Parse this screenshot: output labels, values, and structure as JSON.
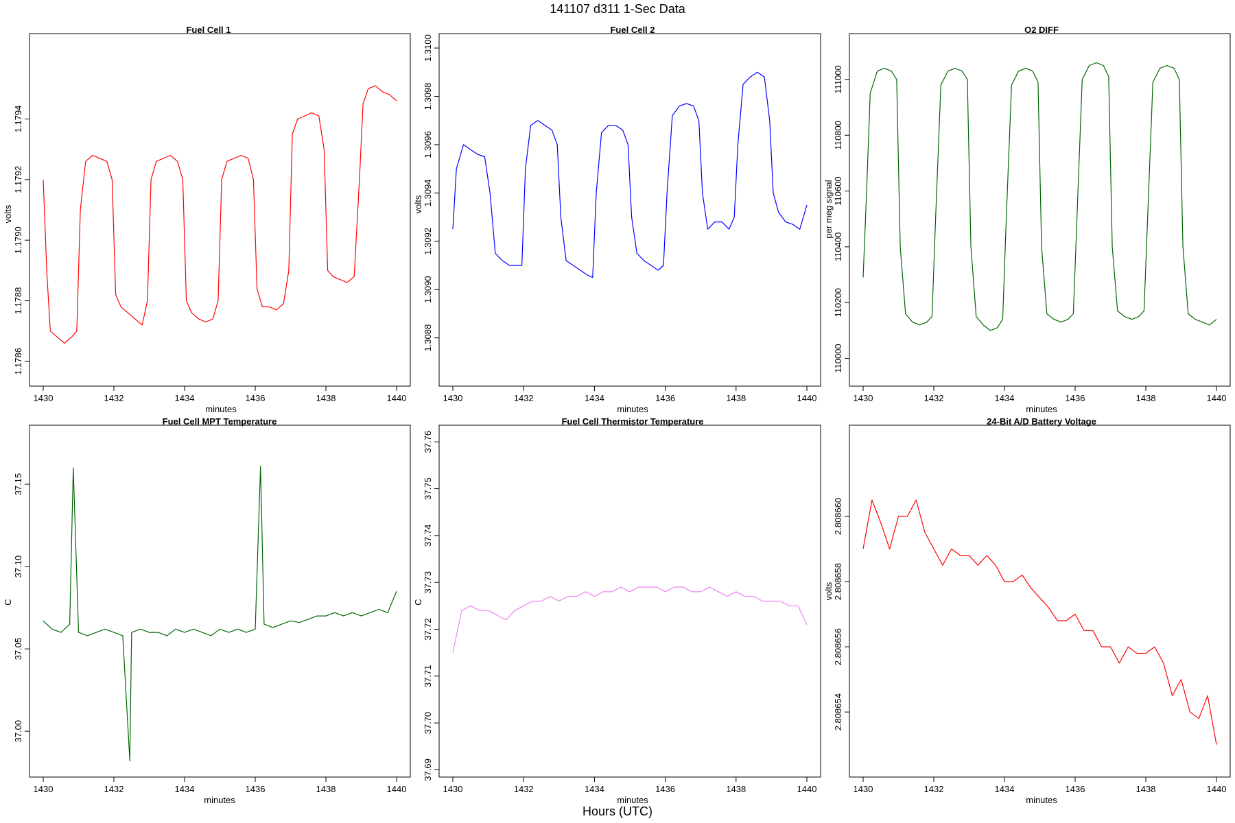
{
  "figure": {
    "title": "141107   d311   1-Sec Data",
    "xaxis_title": "Hours (UTC)"
  },
  "chart_data": [
    {
      "type": "line",
      "title": "Fuel Cell 1",
      "xlabel": "minutes",
      "ylabel": "volts",
      "color": "#ff0000",
      "xlim": [
        1430,
        1440
      ],
      "ylim": [
        1.17855,
        1.17965
      ],
      "xticks": [
        1430,
        1432,
        1434,
        1436,
        1438,
        1440
      ],
      "yticks": [
        1.1786,
        1.1788,
        1.179,
        1.1792,
        1.1794
      ],
      "ytick_labels": [
        "1.1786",
        "1.1788",
        "1.1790",
        "1.1792",
        "1.1794"
      ],
      "series": [
        {
          "x": [
            1430.0,
            1430.1,
            1430.2,
            1430.4,
            1430.6,
            1430.8,
            1430.95,
            1431.05,
            1431.2,
            1431.4,
            1431.6,
            1431.8,
            1431.95,
            1432.05,
            1432.2,
            1432.4,
            1432.6,
            1432.8,
            1432.95,
            1433.05,
            1433.2,
            1433.4,
            1433.6,
            1433.8,
            1433.95,
            1434.05,
            1434.2,
            1434.4,
            1434.6,
            1434.8,
            1434.95,
            1435.05,
            1435.2,
            1435.4,
            1435.6,
            1435.8,
            1435.95,
            1436.05,
            1436.2,
            1436.4,
            1436.6,
            1436.8,
            1436.95,
            1437.05,
            1437.2,
            1437.4,
            1437.6,
            1437.8,
            1437.95,
            1438.05,
            1438.2,
            1438.4,
            1438.6,
            1438.8,
            1438.95,
            1439.05,
            1439.2,
            1439.4,
            1439.6,
            1439.8,
            1440.0
          ],
          "y": [
            1.1792,
            1.1789,
            1.1787,
            1.17868,
            1.17866,
            1.17868,
            1.1787,
            1.1791,
            1.17926,
            1.17928,
            1.17927,
            1.17926,
            1.1792,
            1.17882,
            1.17878,
            1.17876,
            1.17874,
            1.17872,
            1.1788,
            1.1792,
            1.17926,
            1.17927,
            1.17928,
            1.17926,
            1.1792,
            1.1788,
            1.17876,
            1.17874,
            1.17873,
            1.17874,
            1.1788,
            1.1792,
            1.17926,
            1.17927,
            1.17928,
            1.17927,
            1.1792,
            1.17884,
            1.17878,
            1.17878,
            1.17877,
            1.17879,
            1.1789,
            1.17935,
            1.1794,
            1.17941,
            1.17942,
            1.17941,
            1.1793,
            1.1789,
            1.17888,
            1.17887,
            1.17886,
            1.17888,
            1.1792,
            1.17945,
            1.1795,
            1.17951,
            1.17949,
            1.17948,
            1.17946
          ]
        }
      ]
    },
    {
      "type": "line",
      "title": "Fuel Cell 2",
      "xlabel": "minutes",
      "ylabel": "volts",
      "color": "#0000ff",
      "xlim": [
        1430,
        1440
      ],
      "ylim": [
        1.30864,
        1.31002
      ],
      "xticks": [
        1430,
        1432,
        1434,
        1436,
        1438,
        1440
      ],
      "yticks": [
        1.3088,
        1.309,
        1.3092,
        1.3094,
        1.3096,
        1.3098,
        1.31
      ],
      "ytick_labels": [
        "1.3088",
        "1.3090",
        "1.3092",
        "1.3094",
        "1.3096",
        "1.3098",
        "1.3100"
      ],
      "series": [
        {
          "x": [
            1430.0,
            1430.1,
            1430.3,
            1430.5,
            1430.7,
            1430.9,
            1431.05,
            1431.2,
            1431.4,
            1431.6,
            1431.8,
            1431.95,
            1432.05,
            1432.2,
            1432.4,
            1432.6,
            1432.8,
            1432.95,
            1433.05,
            1433.2,
            1433.4,
            1433.6,
            1433.8,
            1433.95,
            1434.05,
            1434.2,
            1434.4,
            1434.6,
            1434.8,
            1434.95,
            1435.05,
            1435.2,
            1435.4,
            1435.6,
            1435.8,
            1435.95,
            1436.05,
            1436.2,
            1436.4,
            1436.6,
            1436.8,
            1436.95,
            1437.05,
            1437.2,
            1437.4,
            1437.6,
            1437.8,
            1437.95,
            1438.05,
            1438.2,
            1438.4,
            1438.6,
            1438.8,
            1438.95,
            1439.05,
            1439.2,
            1439.4,
            1439.6,
            1439.8,
            1440.0
          ],
          "y": [
            1.30925,
            1.3095,
            1.3096,
            1.30958,
            1.30956,
            1.30955,
            1.3094,
            1.30915,
            1.30912,
            1.3091,
            1.3091,
            1.3091,
            1.3095,
            1.30968,
            1.3097,
            1.30968,
            1.30966,
            1.3096,
            1.3093,
            1.30912,
            1.3091,
            1.30908,
            1.30906,
            1.30905,
            1.3094,
            1.30965,
            1.30968,
            1.30968,
            1.30966,
            1.3096,
            1.3093,
            1.30915,
            1.30912,
            1.3091,
            1.30908,
            1.3091,
            1.3094,
            1.30972,
            1.30976,
            1.30977,
            1.30976,
            1.3097,
            1.3094,
            1.30925,
            1.30928,
            1.30928,
            1.30925,
            1.3093,
            1.3096,
            1.30985,
            1.30988,
            1.3099,
            1.30988,
            1.3097,
            1.3094,
            1.30932,
            1.30928,
            1.30927,
            1.30925,
            1.30935
          ]
        }
      ]
    },
    {
      "type": "line",
      "title": "O2 DIFF",
      "xlabel": "minutes",
      "ylabel": "per meg signal",
      "color": "#006400",
      "xlim": [
        1430,
        1440
      ],
      "ylim": [
        109935,
        111130
      ],
      "xticks": [
        1430,
        1432,
        1434,
        1436,
        1438,
        1440
      ],
      "yticks": [
        110000,
        110200,
        110400,
        110600,
        110800,
        111000
      ],
      "ytick_labels": [
        "110000",
        "110200",
        "110400",
        "110600",
        "110800",
        "111000"
      ],
      "series": [
        {
          "x": [
            1430.0,
            1430.1,
            1430.2,
            1430.4,
            1430.6,
            1430.8,
            1430.95,
            1431.05,
            1431.2,
            1431.4,
            1431.6,
            1431.8,
            1431.95,
            1432.05,
            1432.2,
            1432.4,
            1432.6,
            1432.8,
            1432.95,
            1433.05,
            1433.2,
            1433.4,
            1433.6,
            1433.8,
            1433.95,
            1434.05,
            1434.2,
            1434.4,
            1434.6,
            1434.8,
            1434.95,
            1435.05,
            1435.2,
            1435.4,
            1435.6,
            1435.8,
            1435.95,
            1436.05,
            1436.2,
            1436.4,
            1436.6,
            1436.8,
            1436.95,
            1437.05,
            1437.2,
            1437.4,
            1437.6,
            1437.8,
            1437.95,
            1438.05,
            1438.2,
            1438.4,
            1438.6,
            1438.8,
            1438.95,
            1439.05,
            1439.2,
            1439.4,
            1439.6,
            1439.8,
            1440.0
          ],
          "y": [
            110290,
            110600,
            110950,
            111030,
            111040,
            111030,
            111000,
            110400,
            110160,
            110130,
            110120,
            110130,
            110150,
            110500,
            110980,
            111030,
            111040,
            111030,
            111000,
            110400,
            110150,
            110120,
            110100,
            110110,
            110140,
            110500,
            110980,
            111030,
            111040,
            111030,
            110990,
            110400,
            110160,
            110140,
            110130,
            110140,
            110160,
            110500,
            111000,
            111050,
            111060,
            111050,
            111010,
            110400,
            110170,
            110150,
            110140,
            110150,
            110170,
            110500,
            110990,
            111040,
            111050,
            111040,
            111000,
            110400,
            110160,
            110140,
            110130,
            110120,
            110140
          ]
        }
      ]
    },
    {
      "type": "line",
      "title": "Fuel Cell MPT Temperature",
      "xlabel": "minutes",
      "ylabel": "C",
      "color": "#006400",
      "xlim": [
        1430,
        1440
      ],
      "ylim": [
        36.978,
        37.18
      ],
      "xticks": [
        1430,
        1432,
        1434,
        1436,
        1438,
        1440
      ],
      "yticks": [
        37.0,
        37.05,
        37.1,
        37.15
      ],
      "ytick_labels": [
        "37.00",
        "37.05",
        "37.10",
        "37.15"
      ],
      "series": [
        {
          "x": [
            1430.0,
            1430.25,
            1430.5,
            1430.75,
            1430.85,
            1431.0,
            1431.25,
            1431.5,
            1431.75,
            1432.0,
            1432.25,
            1432.45,
            1432.5,
            1432.75,
            1433.0,
            1433.25,
            1433.5,
            1433.75,
            1434.0,
            1434.25,
            1434.5,
            1434.75,
            1435.0,
            1435.25,
            1435.5,
            1435.75,
            1436.0,
            1436.15,
            1436.25,
            1436.5,
            1436.75,
            1437.0,
            1437.25,
            1437.5,
            1437.75,
            1438.0,
            1438.25,
            1438.5,
            1438.75,
            1439.0,
            1439.25,
            1439.5,
            1439.75,
            1440.0
          ],
          "y": [
            37.067,
            37.062,
            37.06,
            37.065,
            37.16,
            37.06,
            37.058,
            37.06,
            37.062,
            37.06,
            37.058,
            36.982,
            37.06,
            37.062,
            37.06,
            37.06,
            37.058,
            37.062,
            37.06,
            37.062,
            37.06,
            37.058,
            37.062,
            37.06,
            37.062,
            37.06,
            37.062,
            37.161,
            37.065,
            37.063,
            37.065,
            37.067,
            37.066,
            37.068,
            37.07,
            37.07,
            37.072,
            37.07,
            37.072,
            37.07,
            37.072,
            37.074,
            37.072,
            37.085
          ]
        }
      ]
    },
    {
      "type": "line",
      "title": "Fuel Cell Thermistor Temperature",
      "xlabel": "minutes",
      "ylabel": "C",
      "color": "#ee82ee",
      "xlim": [
        1430,
        1440
      ],
      "ylim": [
        37.6905,
        37.7615
      ],
      "xticks": [
        1430,
        1432,
        1434,
        1436,
        1438,
        1440
      ],
      "yticks": [
        37.69,
        37.7,
        37.71,
        37.72,
        37.73,
        37.74,
        37.75,
        37.76
      ],
      "ytick_labels": [
        "37.69",
        "37.70",
        "37.71",
        "37.72",
        "37.73",
        "37.74",
        "37.75",
        "37.76"
      ],
      "series": [
        {
          "x": [
            1430.0,
            1430.25,
            1430.5,
            1430.75,
            1431.0,
            1431.25,
            1431.5,
            1431.75,
            1432.0,
            1432.25,
            1432.5,
            1432.75,
            1433.0,
            1433.25,
            1433.5,
            1433.75,
            1434.0,
            1434.25,
            1434.5,
            1434.75,
            1435.0,
            1435.25,
            1435.5,
            1435.75,
            1436.0,
            1436.25,
            1436.5,
            1436.75,
            1437.0,
            1437.25,
            1437.5,
            1437.75,
            1438.0,
            1438.25,
            1438.5,
            1438.75,
            1439.0,
            1439.25,
            1439.5,
            1439.75,
            1440.0
          ],
          "y": [
            37.715,
            37.724,
            37.725,
            37.724,
            37.724,
            37.723,
            37.722,
            37.724,
            37.725,
            37.726,
            37.726,
            37.727,
            37.726,
            37.727,
            37.727,
            37.728,
            37.727,
            37.728,
            37.728,
            37.729,
            37.728,
            37.729,
            37.729,
            37.729,
            37.728,
            37.729,
            37.729,
            37.728,
            37.728,
            37.729,
            37.728,
            37.727,
            37.728,
            37.727,
            37.727,
            37.726,
            37.726,
            37.726,
            37.725,
            37.725,
            37.721
          ]
        }
      ]
    },
    {
      "type": "line",
      "title": "24-Bit A/D Battery Voltage",
      "xlabel": "minutes",
      "ylabel": "volts",
      "color": "#ff0000",
      "xlim": [
        1430,
        1440
      ],
      "ylim": [
        2.8086523,
        2.8086625
      ],
      "xticks": [
        1430,
        1432,
        1434,
        1436,
        1438,
        1440
      ],
      "yticks": [
        2.808654,
        2.808656,
        2.808658,
        2.80866
      ],
      "ytick_labels": [
        "2.808654",
        "2.808656",
        "2.808658",
        "2.808660"
      ],
      "series": [
        {
          "x": [
            1430.0,
            1430.25,
            1430.5,
            1430.75,
            1431.0,
            1431.25,
            1431.5,
            1431.75,
            1432.0,
            1432.25,
            1432.5,
            1432.75,
            1433.0,
            1433.25,
            1433.5,
            1433.75,
            1434.0,
            1434.25,
            1434.5,
            1434.75,
            1435.0,
            1435.25,
            1435.5,
            1435.75,
            1436.0,
            1436.25,
            1436.5,
            1436.75,
            1437.0,
            1437.25,
            1437.5,
            1437.75,
            1438.0,
            1438.25,
            1438.5,
            1438.75,
            1439.0,
            1439.25,
            1439.5,
            1439.75,
            1440.0
          ],
          "y": [
            2.808659,
            2.8086605,
            2.8086598,
            2.808659,
            2.80866,
            2.80866,
            2.8086605,
            2.8086595,
            2.808659,
            2.8086585,
            2.808659,
            2.8086588,
            2.8086588,
            2.8086585,
            2.8086588,
            2.8086585,
            2.808658,
            2.808658,
            2.8086582,
            2.8086578,
            2.8086575,
            2.8086572,
            2.8086568,
            2.8086568,
            2.808657,
            2.8086565,
            2.8086565,
            2.808656,
            2.808656,
            2.8086555,
            2.808656,
            2.8086558,
            2.8086558,
            2.808656,
            2.8086555,
            2.8086545,
            2.808655,
            2.808654,
            2.8086538,
            2.8086545,
            2.808653
          ]
        }
      ]
    }
  ]
}
